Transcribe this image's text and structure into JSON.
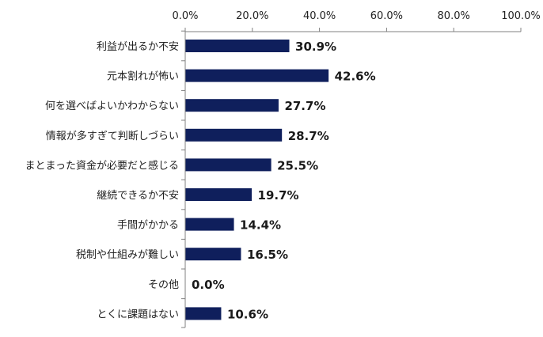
{
  "chart_data": {
    "type": "bar",
    "orientation": "horizontal",
    "categories": [
      "利益が出るか不安",
      "元本割れが怖い",
      "何を選べばよいかわからない",
      "情報が多すぎて判断しづらい",
      "まとまった資金が必要だと感じる",
      "継続できるか不安",
      "手間がかかる",
      "税制や仕組みが難しい",
      "その他",
      "とくに課題はない"
    ],
    "values": [
      30.9,
      42.6,
      27.7,
      28.7,
      25.5,
      19.7,
      14.4,
      16.5,
      0.0,
      10.6
    ],
    "value_labels": [
      "30.9%",
      "42.6%",
      "27.7%",
      "28.7%",
      "25.5%",
      "19.7%",
      "14.4%",
      "16.5%",
      "0.0%",
      "10.6%"
    ],
    "xlim": [
      0,
      100
    ],
    "ticks": [
      0,
      20,
      40,
      60,
      80,
      100
    ],
    "tick_labels": [
      "0.0%",
      "20.0%",
      "40.0%",
      "60.0%",
      "80.0%",
      "100.0%"
    ],
    "axis_position": "top",
    "grid": false,
    "bar_color": "#0f1f5c",
    "title": "",
    "xlabel": "",
    "ylabel": ""
  }
}
